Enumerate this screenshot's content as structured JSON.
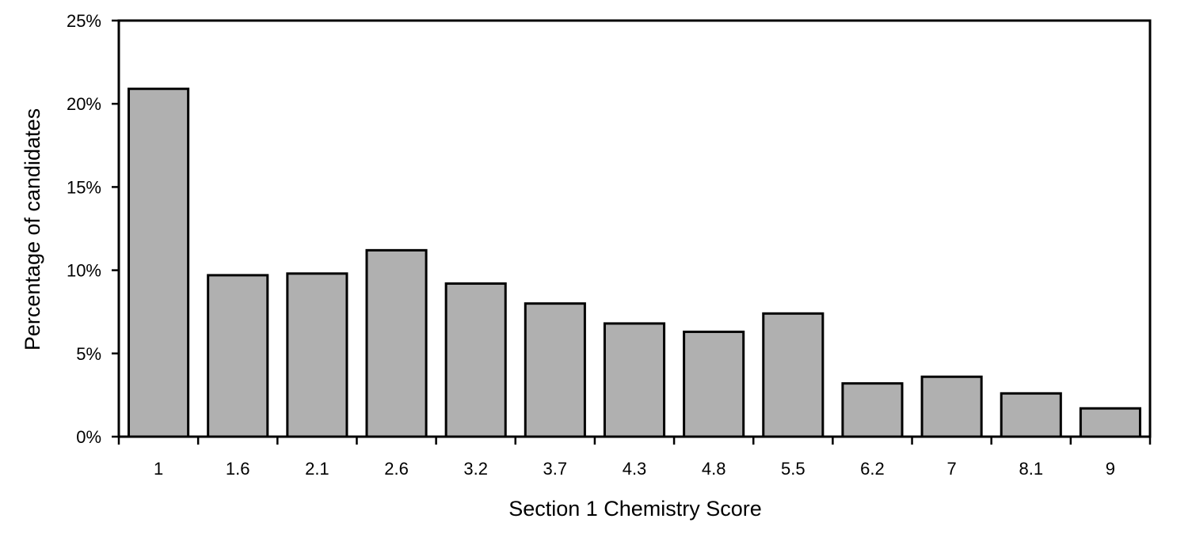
{
  "chart_data": {
    "type": "bar",
    "title": "",
    "xlabel": "Section 1 Chemistry Score",
    "ylabel": "Percentage of candidates",
    "categories": [
      "1",
      "1.6",
      "2.1",
      "2.6",
      "3.2",
      "3.7",
      "4.3",
      "4.8",
      "5.5",
      "6.2",
      "7",
      "8.1",
      "9"
    ],
    "values": [
      20.9,
      9.7,
      9.8,
      11.2,
      9.2,
      8.0,
      6.8,
      6.3,
      7.4,
      3.2,
      3.6,
      2.6,
      1.7
    ],
    "ylim": [
      0,
      25
    ],
    "yticks": [
      0,
      5,
      10,
      15,
      20,
      25
    ],
    "ytick_labels": [
      "0%",
      "5%",
      "10%",
      "15%",
      "20%",
      "25%"
    ],
    "grid": false,
    "legend": "none",
    "bar_color": "#b0b0b0",
    "bar_edge_color": "#000000"
  }
}
